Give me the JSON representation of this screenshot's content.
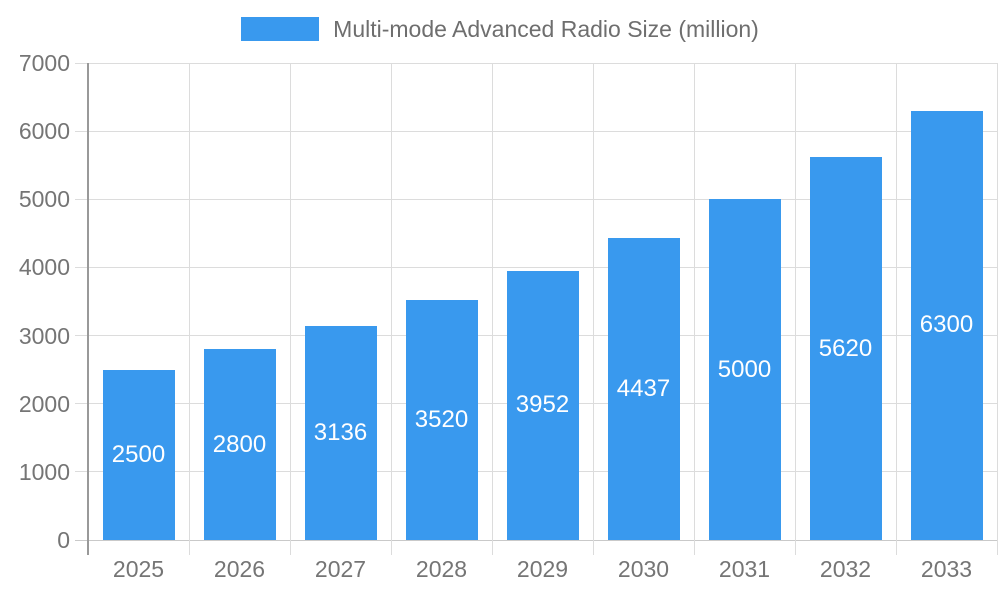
{
  "colors": {
    "bar": "#3999EE",
    "grid": "#DCDCDC",
    "baseline": "#C9C9C9",
    "axis": "#999999",
    "tick_text": "#757575",
    "legend_text": "#6E6E6E",
    "value_text": "#FFFFFF",
    "background": "#FFFFFF"
  },
  "legend": {
    "label": "Multi-mode Advanced Radio Size (million)"
  },
  "chart_data": {
    "type": "bar",
    "categories": [
      "2025",
      "2026",
      "2027",
      "2028",
      "2029",
      "2030",
      "2031",
      "2032",
      "2033"
    ],
    "series": [
      {
        "name": "Multi-mode Advanced Radio Size (million)",
        "values": [
          2500,
          2800,
          3136,
          3520,
          3952,
          4437,
          5000,
          5620,
          6300
        ]
      }
    ],
    "ylim": [
      0,
      7000
    ],
    "yticks": [
      0,
      1000,
      2000,
      3000,
      4000,
      5000,
      6000,
      7000
    ],
    "grid": true,
    "legend_position": "top",
    "value_label_position": "inside-center"
  }
}
